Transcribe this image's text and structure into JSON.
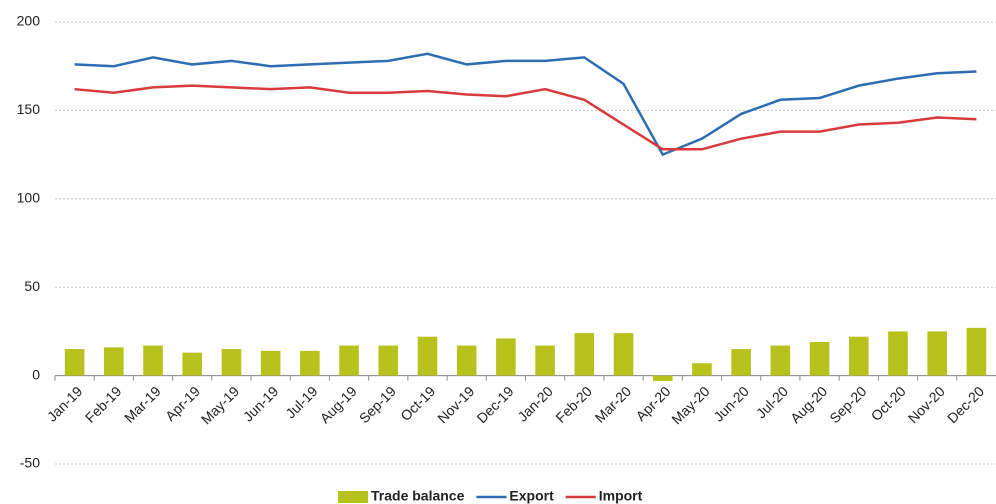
{
  "chart_data": {
    "type": "combo",
    "categories": [
      "Jan-19",
      "Feb-19",
      "Mar-19",
      "Apr-19",
      "May-19",
      "Jun-19",
      "Jul-19",
      "Aug-19",
      "Sep-19",
      "Oct-19",
      "Nov-19",
      "Dec-19",
      "Jan-20",
      "Feb-20",
      "Mar-20",
      "Apr-20",
      "May-20",
      "Jun-20",
      "Jul-20",
      "Aug-20",
      "Sep-20",
      "Oct-20",
      "Nov-20",
      "Dec-20"
    ],
    "series": [
      {
        "name": "Trade balance",
        "type": "bar",
        "color": "#b8c21c",
        "values": [
          15,
          16,
          17,
          13,
          15,
          14,
          14,
          17,
          17,
          22,
          17,
          21,
          17,
          24,
          24,
          -3,
          7,
          15,
          17,
          19,
          22,
          25,
          25,
          27
        ]
      },
      {
        "name": "Export",
        "type": "line",
        "color": "#2e6db4",
        "values": [
          176,
          175,
          180,
          176,
          178,
          175,
          176,
          177,
          178,
          182,
          176,
          178,
          178,
          180,
          165,
          125,
          134,
          148,
          156,
          157,
          164,
          168,
          171,
          172
        ]
      },
      {
        "name": "Import",
        "type": "line",
        "color": "#d93a3c",
        "values": [
          162,
          160,
          163,
          164,
          163,
          162,
          163,
          160,
          160,
          161,
          159,
          158,
          162,
          156,
          142,
          128,
          128,
          134,
          138,
          138,
          142,
          143,
          146,
          145
        ]
      }
    ],
    "ylim": [
      -50,
      200
    ],
    "yticks": [
      -50,
      0,
      50,
      100,
      150,
      200
    ],
    "grid": true,
    "legend": "bottom"
  }
}
